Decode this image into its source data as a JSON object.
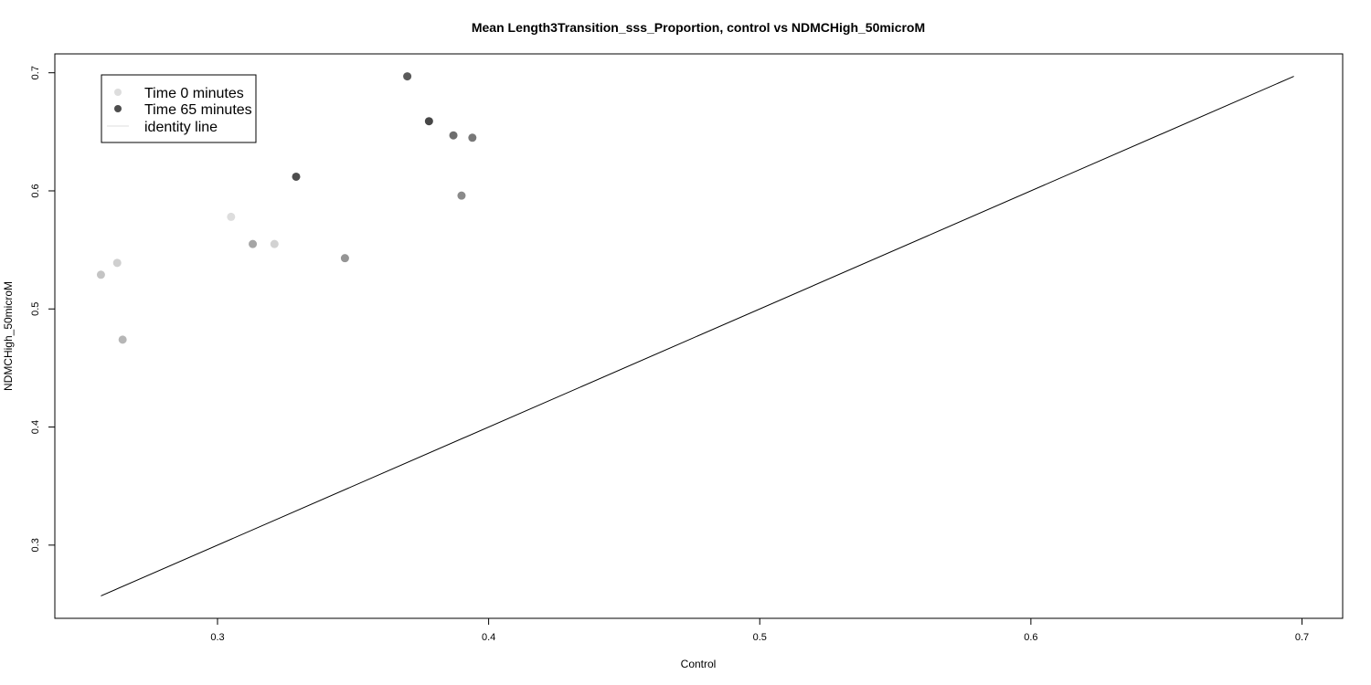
{
  "chart_data": {
    "type": "scatter",
    "title": "Mean Length3Transition_sss_Proportion, control vs NDMCHigh_50microM",
    "xlabel": "Control",
    "ylabel": "NDMCHigh_50microM",
    "xlim": [
      0.24,
      0.715
    ],
    "ylim": [
      0.238,
      0.716
    ],
    "x_ticks": [
      0.3,
      0.4,
      0.5,
      0.6,
      0.7
    ],
    "y_ticks": [
      0.3,
      0.4,
      0.5,
      0.6,
      0.7
    ],
    "x_tick_labels": [
      "0.3",
      "0.4",
      "0.5",
      "0.6",
      "0.7"
    ],
    "y_tick_labels": [
      "0.3",
      "0.4",
      "0.5",
      "0.6",
      "0.7"
    ],
    "grid": false,
    "legend_position": "top-left",
    "legend": [
      {
        "label": "Time 0 minutes",
        "marker": "point",
        "color": "#dddddd"
      },
      {
        "label": "Time 65 minutes",
        "marker": "point",
        "color": "#4d4d4d"
      },
      {
        "label": "identity line",
        "marker": "line",
        "color": "#dddddd"
      }
    ],
    "points": [
      {
        "x": 0.257,
        "y": 0.529,
        "color": "#c4c4c4"
      },
      {
        "x": 0.263,
        "y": 0.539,
        "color": "#cfcfcf"
      },
      {
        "x": 0.265,
        "y": 0.474,
        "color": "#b6b6b6"
      },
      {
        "x": 0.305,
        "y": 0.578,
        "color": "#dddddd"
      },
      {
        "x": 0.313,
        "y": 0.555,
        "color": "#a5a5a5"
      },
      {
        "x": 0.321,
        "y": 0.555,
        "color": "#d2d2d2"
      },
      {
        "x": 0.329,
        "y": 0.612,
        "color": "#4d4d4d"
      },
      {
        "x": 0.347,
        "y": 0.543,
        "color": "#959595"
      },
      {
        "x": 0.37,
        "y": 0.697,
        "color": "#5a5a5a"
      },
      {
        "x": 0.378,
        "y": 0.659,
        "color": "#474747"
      },
      {
        "x": 0.387,
        "y": 0.647,
        "color": "#6e6e6e"
      },
      {
        "x": 0.39,
        "y": 0.596,
        "color": "#8a8a8a"
      },
      {
        "x": 0.394,
        "y": 0.645,
        "color": "#787878"
      }
    ],
    "identity_line": {
      "from": 0.257,
      "to": 0.697,
      "color": "#000000"
    }
  }
}
